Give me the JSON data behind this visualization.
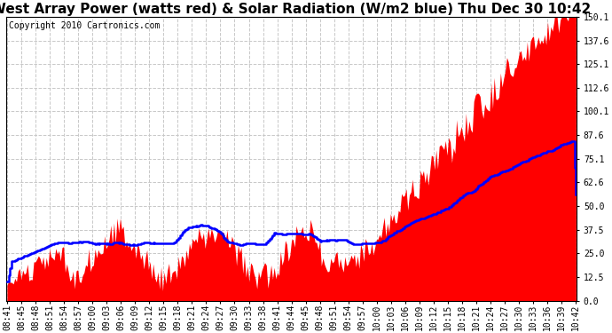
{
  "title": "West Array Power (watts red) & Solar Radiation (W/m2 blue) Thu Dec 30 10:42",
  "copyright": "Copyright 2010 Cartronics.com",
  "yticks": [
    0.0,
    12.5,
    25.0,
    37.5,
    50.0,
    62.6,
    75.1,
    87.6,
    100.1,
    112.6,
    125.1,
    137.6,
    150.1
  ],
  "ylim": [
    0.0,
    150.1
  ],
  "xtick_labels": [
    "08:41",
    "08:45",
    "08:48",
    "08:51",
    "08:54",
    "08:57",
    "09:00",
    "09:03",
    "09:06",
    "09:09",
    "09:12",
    "09:15",
    "09:18",
    "09:21",
    "09:24",
    "09:27",
    "09:30",
    "09:33",
    "09:38",
    "09:41",
    "09:44",
    "09:45",
    "09:48",
    "09:51",
    "09:54",
    "09:57",
    "10:00",
    "10:03",
    "10:06",
    "10:09",
    "10:12",
    "10:15",
    "10:18",
    "10:21",
    "10:24",
    "10:27",
    "10:30",
    "10:33",
    "10:36",
    "10:39",
    "10:42"
  ],
  "red_color": "#ff0000",
  "blue_color": "#0000ff",
  "bg_color": "#ffffff",
  "plot_bg_color": "#ffffff",
  "grid_color": "#c8c8c8",
  "title_fontsize": 11,
  "tick_fontsize": 7,
  "copyright_fontsize": 7
}
